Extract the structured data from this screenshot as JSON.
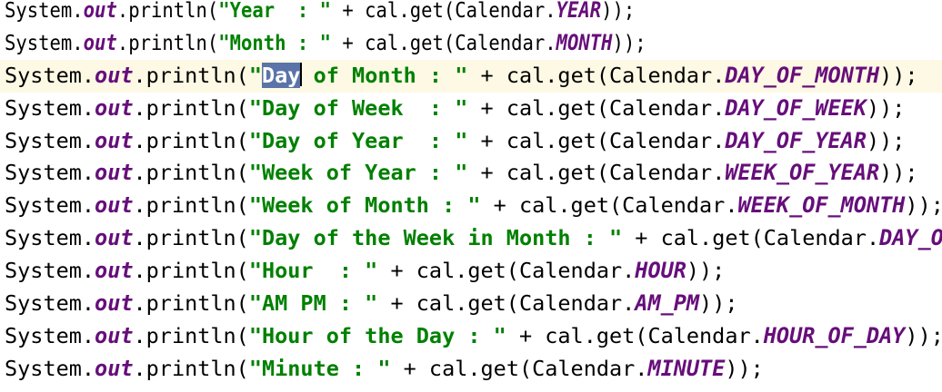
{
  "editor": {
    "current_line": 2,
    "selection": "Day",
    "lines": [
      {
        "pre": "System.",
        "field": "out",
        "mid": ".println(",
        "str": "\"Year  : \"",
        "rest": " + cal.get(Calendar.",
        "const": "YEAR",
        "end": "));"
      },
      {
        "pre": "System.",
        "field": "out",
        "mid": ".println(",
        "str": "\"Month : \"",
        "rest": " + cal.get(Calendar.",
        "const": "MONTH",
        "end": "));"
      },
      {
        "pre": "System.",
        "field": "out",
        "mid": ".println(",
        "str_open": "\"",
        "str_sel": "Day",
        "str": " of Month : \"",
        "rest": " + cal.get(Calendar.",
        "const": "DAY_OF_MONTH",
        "end": "));"
      },
      {
        "pre": "System.",
        "field": "out",
        "mid": ".println(",
        "str": "\"Day of Week  : \"",
        "rest": " + cal.get(Calendar.",
        "const": "DAY_OF_WEEK",
        "end": "));"
      },
      {
        "pre": "System.",
        "field": "out",
        "mid": ".println(",
        "str": "\"Day of Year  : \"",
        "rest": " + cal.get(Calendar.",
        "const": "DAY_OF_YEAR",
        "end": "));"
      },
      {
        "pre": "System.",
        "field": "out",
        "mid": ".println(",
        "str": "\"Week of Year : \"",
        "rest": " + cal.get(Calendar.",
        "const": "WEEK_OF_YEAR",
        "end": "));"
      },
      {
        "pre": "System.",
        "field": "out",
        "mid": ".println(",
        "str": "\"Week of Month : \"",
        "rest": " + cal.get(Calendar.",
        "const": "WEEK_OF_MONTH",
        "end": "));"
      },
      {
        "pre": "System.",
        "field": "out",
        "mid": ".println(",
        "str": "\"Day of the Week in Month : \"",
        "rest": " + cal.get(Calendar.",
        "const": "DAY_OF",
        "end": ""
      },
      {
        "pre": "System.",
        "field": "out",
        "mid": ".println(",
        "str": "\"Hour  : \"",
        "rest": " + cal.get(Calendar.",
        "const": "HOUR",
        "end": "));"
      },
      {
        "pre": "System.",
        "field": "out",
        "mid": ".println(",
        "str": "\"AM PM : \"",
        "rest": " + cal.get(Calendar.",
        "const": "AM_PM",
        "end": "));"
      },
      {
        "pre": "System.",
        "field": "out",
        "mid": ".println(",
        "str": "\"Hour of the Day : \"",
        "rest": " + cal.get(Calendar.",
        "const": "HOUR_OF_DAY",
        "end": "));"
      },
      {
        "pre": "System.",
        "field": "out",
        "mid": ".println(",
        "str": "\"Minute : \"",
        "rest": " + cal.get(Calendar.",
        "const": "MINUTE",
        "end": "));"
      }
    ]
  },
  "colors": {
    "string": "#008000",
    "constant": "#660e7a",
    "selection": "#5a74a9",
    "current_line": "#fdf9e4"
  }
}
